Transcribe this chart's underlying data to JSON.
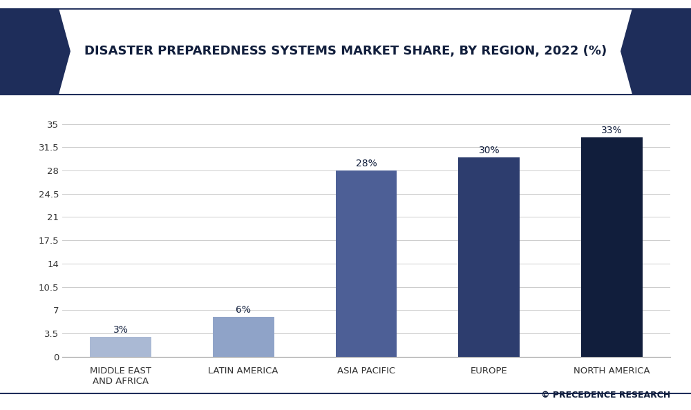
{
  "title": "DISASTER PREPAREDNESS SYSTEMS MARKET SHARE, BY REGION, 2022 (%)",
  "categories": [
    "MIDDLE EAST\nAND AFRICA",
    "LATIN AMERICA",
    "ASIA PACIFIC",
    "EUROPE",
    "NORTH AMERICA"
  ],
  "values": [
    3,
    6,
    28,
    30,
    33
  ],
  "bar_colors": [
    "#aab9d4",
    "#8fa3c8",
    "#4d5f96",
    "#2d3d6e",
    "#111e3c"
  ],
  "yticks": [
    0,
    3.5,
    7,
    10.5,
    14,
    17.5,
    21,
    24.5,
    28,
    31.5,
    35
  ],
  "ytick_labels": [
    "0",
    "3.5",
    "7",
    "10.5",
    "14",
    "17.5",
    "21",
    "24.5",
    "28",
    "31.5",
    "35"
  ],
  "ylim": [
    0,
    37
  ],
  "value_labels": [
    "3%",
    "6%",
    "28%",
    "30%",
    "33%"
  ],
  "background_color": "#ffffff",
  "plot_area_color": "#ffffff",
  "grid_color": "#cccccc",
  "title_color": "#111e3c",
  "bar_label_color": "#111e3c",
  "header_bg": "#ffffff",
  "chevron_color": "#1e2d5a",
  "border_color": "#1e2d5a",
  "watermark": "© PRECEDENCE RESEARCH",
  "title_fontsize": 13,
  "label_fontsize": 10,
  "tick_fontsize": 9.5,
  "watermark_fontsize": 9
}
